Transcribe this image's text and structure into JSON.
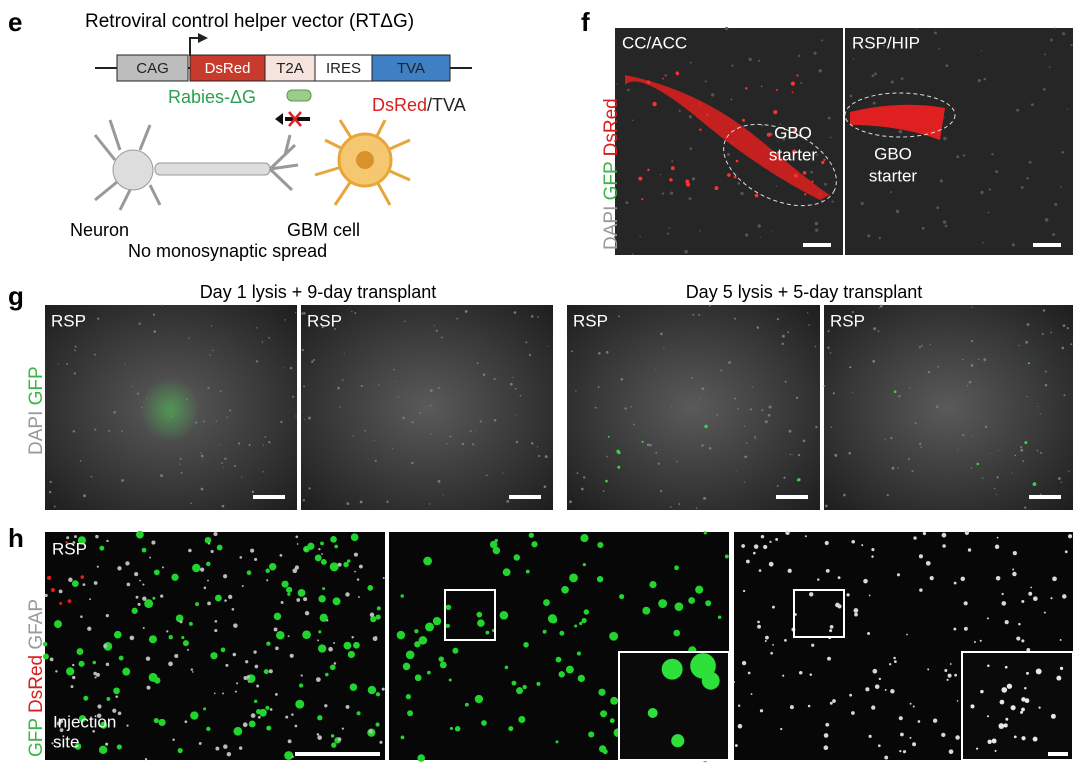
{
  "panel_e": {
    "label": "e",
    "title": "Retroviral control helper vector (RTΔG)",
    "construct": [
      "CAG",
      "DsRed",
      "T2A",
      "IRES",
      "TVA"
    ],
    "virus": "Rabies-ΔG",
    "receptor": [
      "DsRed",
      "/TVA"
    ],
    "neuron": "Neuron",
    "gbm_cell": "GBM cell",
    "caption": "No monosynaptic spread"
  },
  "panel_f": {
    "label": "f",
    "stains": [
      "DAPI",
      "GFP",
      "DsRed"
    ],
    "images": [
      {
        "region": "CC/ACC",
        "annotation": [
          "GBO",
          "starter"
        ]
      },
      {
        "region": "RSP/HIP",
        "annotation": [
          "GBO",
          "starter"
        ]
      }
    ]
  },
  "panel_g": {
    "label": "g",
    "stains": [
      "DAPI",
      "GFP"
    ],
    "groups": [
      "Day 1 lysis + 9-day transplant",
      "Day 5 lysis + 5-day transplant"
    ],
    "images": [
      "RSP",
      "RSP",
      "RSP",
      "RSP"
    ]
  },
  "panel_h": {
    "label": "h",
    "stains": [
      "GFP",
      "DsRed",
      "GFAP"
    ],
    "region": "RSP",
    "annotation": [
      "Injection",
      "site"
    ]
  }
}
